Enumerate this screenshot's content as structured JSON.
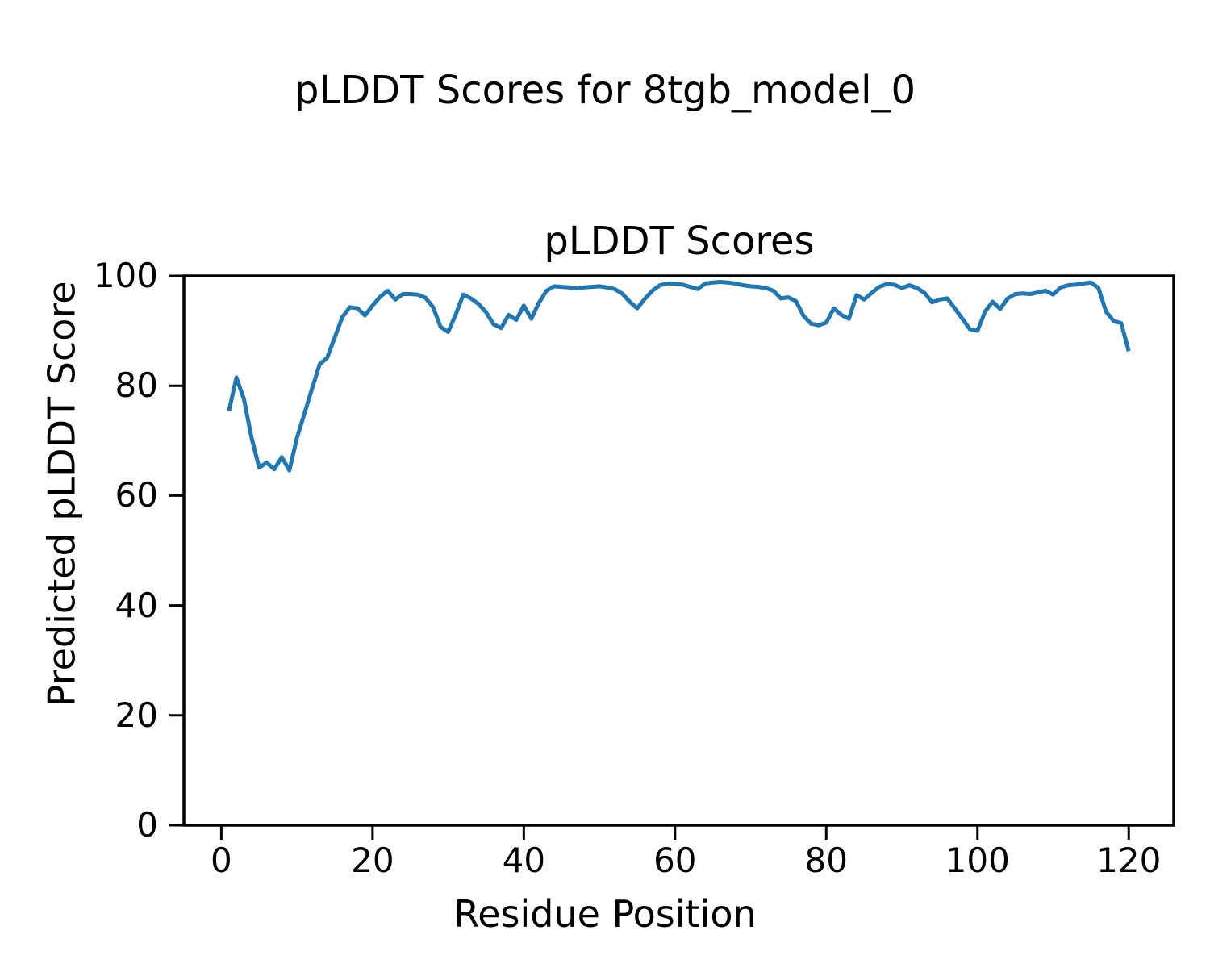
{
  "figure": {
    "suptitle": "pLDDT Scores for 8tgb_model_0",
    "background_color": "#ffffff",
    "text_color": "#000000"
  },
  "chart_data": {
    "type": "line",
    "title": "pLDDT Scores",
    "xlabel": "Residue Position",
    "ylabel": "Predicted pLDDT Score",
    "series_name": "pLDDT",
    "line_color": "#1f77b4",
    "grid": false,
    "legend": "none",
    "xlim": [
      -4.95,
      125.95
    ],
    "ylim": [
      0,
      100
    ],
    "xticks": [
      0,
      20,
      40,
      60,
      80,
      100,
      120
    ],
    "yticks": [
      0,
      20,
      40,
      60,
      80,
      100
    ],
    "x": [
      1,
      2,
      3,
      4,
      5,
      6,
      7,
      8,
      9,
      10,
      11,
      12,
      13,
      14,
      15,
      16,
      17,
      18,
      19,
      20,
      21,
      22,
      23,
      24,
      25,
      26,
      27,
      28,
      29,
      30,
      31,
      32,
      33,
      34,
      35,
      36,
      37,
      38,
      39,
      40,
      41,
      42,
      43,
      44,
      45,
      46,
      47,
      48,
      49,
      50,
      51,
      52,
      53,
      54,
      55,
      56,
      57,
      58,
      59,
      60,
      61,
      62,
      63,
      64,
      65,
      66,
      67,
      68,
      69,
      70,
      71,
      72,
      73,
      74,
      75,
      76,
      77,
      78,
      79,
      80,
      81,
      82,
      83,
      84,
      85,
      86,
      87,
      88,
      89,
      90,
      91,
      92,
      93,
      94,
      95,
      96,
      97,
      98,
      99,
      100,
      101,
      102,
      103,
      104,
      105,
      106,
      107,
      108,
      109,
      110,
      111,
      112,
      113,
      114,
      115,
      116,
      117,
      118,
      119,
      120
    ],
    "y": [
      75.4,
      81.5,
      77.5,
      70.5,
      65.1,
      66.0,
      64.8,
      67.0,
      64.6,
      70.5,
      75.0,
      79.5,
      83.9,
      85.1,
      88.8,
      92.5,
      94.3,
      94.1,
      92.8,
      94.6,
      96.2,
      97.3,
      95.7,
      96.7,
      96.7,
      96.6,
      96.0,
      94.3,
      90.7,
      89.8,
      93.0,
      96.6,
      95.9,
      94.9,
      93.4,
      91.2,
      90.5,
      92.9,
      92.0,
      94.6,
      92.2,
      95.1,
      97.3,
      98.1,
      98.0,
      97.9,
      97.7,
      97.9,
      98.0,
      98.1,
      97.9,
      97.6,
      96.8,
      95.3,
      94.1,
      95.8,
      97.3,
      98.3,
      98.6,
      98.6,
      98.4,
      98.0,
      97.6,
      98.6,
      98.8,
      98.9,
      98.8,
      98.6,
      98.3,
      98.1,
      98.0,
      97.8,
      97.3,
      95.9,
      96.1,
      95.4,
      92.7,
      91.3,
      91.0,
      91.5,
      94.1,
      92.9,
      92.2,
      96.5,
      95.7,
      96.9,
      98.0,
      98.5,
      98.4,
      97.8,
      98.3,
      97.8,
      96.9,
      95.2,
      95.7,
      95.9,
      94.1,
      92.2,
      90.3,
      90.0,
      93.5,
      95.3,
      94.0,
      95.9,
      96.7,
      96.8,
      96.7,
      97.0,
      97.3,
      96.6,
      97.9,
      98.3,
      98.4,
      98.6,
      98.8,
      97.8,
      93.5,
      91.8,
      91.4,
      86.3
    ]
  }
}
